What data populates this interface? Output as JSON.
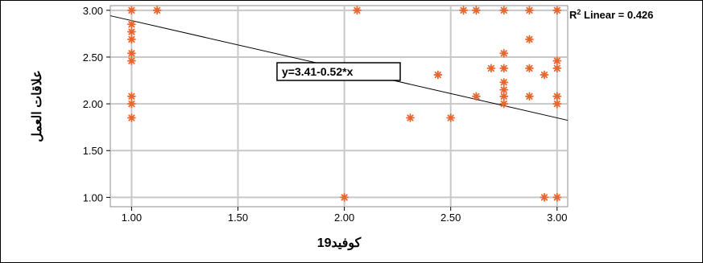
{
  "chart_data": {
    "type": "scatter",
    "xlabel": "كوفيد19",
    "ylabel": "علاقات العمل",
    "xlim": [
      0.9,
      3.05
    ],
    "ylim": [
      0.9,
      3.05
    ],
    "x_ticks": [
      1.0,
      1.5,
      2.0,
      2.5,
      3.0
    ],
    "y_ticks": [
      1.0,
      1.5,
      2.0,
      2.5,
      3.0
    ],
    "x_tick_labels": [
      "1.00",
      "1.50",
      "2.00",
      "2.50",
      "3.00"
    ],
    "y_tick_labels": [
      "1.00",
      "1.50",
      "2.00",
      "2.50",
      "3.00"
    ],
    "grid": true,
    "point_color": "#E8662E",
    "line_color": "#000000",
    "r2_label": "R",
    "r2_sup": "2",
    "r2_rest": " Linear = 0.426",
    "equation": "y=3.41-0.52*x",
    "fit": {
      "intercept": 3.41,
      "slope": -0.52
    },
    "points": [
      [
        1.0,
        3.0
      ],
      [
        1.0,
        2.85
      ],
      [
        1.0,
        2.77
      ],
      [
        1.0,
        2.69
      ],
      [
        1.0,
        2.54
      ],
      [
        1.0,
        2.46
      ],
      [
        1.0,
        2.08
      ],
      [
        1.0,
        2.0
      ],
      [
        1.0,
        1.85
      ],
      [
        1.12,
        3.0
      ],
      [
        2.0,
        1.0
      ],
      [
        2.06,
        3.0
      ],
      [
        2.31,
        1.85
      ],
      [
        2.44,
        2.31
      ],
      [
        2.5,
        1.85
      ],
      [
        2.56,
        3.0
      ],
      [
        2.62,
        3.0
      ],
      [
        2.62,
        2.08
      ],
      [
        2.69,
        2.38
      ],
      [
        2.75,
        3.0
      ],
      [
        2.75,
        2.54
      ],
      [
        2.75,
        2.38
      ],
      [
        2.75,
        2.23
      ],
      [
        2.75,
        2.15
      ],
      [
        2.75,
        2.08
      ],
      [
        2.75,
        2.0
      ],
      [
        2.87,
        3.0
      ],
      [
        2.87,
        2.69
      ],
      [
        2.87,
        2.38
      ],
      [
        2.87,
        2.08
      ],
      [
        2.94,
        2.31
      ],
      [
        2.94,
        1.0
      ],
      [
        3.0,
        3.0
      ],
      [
        3.0,
        2.46
      ],
      [
        3.0,
        2.38
      ],
      [
        3.0,
        2.08
      ],
      [
        3.0,
        2.0
      ],
      [
        3.0,
        1.0
      ]
    ]
  }
}
